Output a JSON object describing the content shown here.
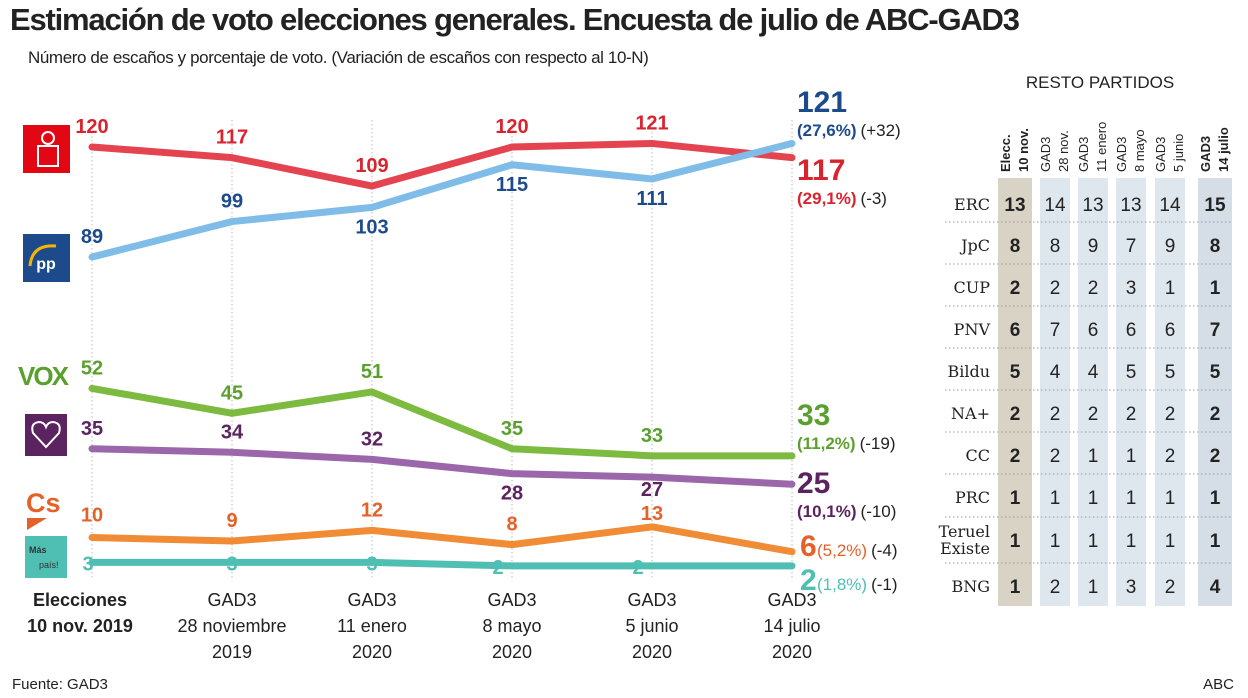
{
  "header": {
    "title": "Estimación de voto elecciones generales. Encuesta de julio de ABC-GAD3",
    "subtitle": "Número de escaños y porcentaje de voto. (Variación de escaños con respecto al 10-N)"
  },
  "footer": {
    "source": "Fuente: GAD3",
    "brand": "ABC"
  },
  "chart_data": {
    "type": "line",
    "categories": [
      [
        "Elecciones",
        "10 nov. 2019"
      ],
      [
        "GAD3",
        "28 noviembre",
        "2019"
      ],
      [
        "GAD3",
        "11 enero",
        "2020"
      ],
      [
        "GAD3",
        "8 mayo",
        "2020"
      ],
      [
        "GAD3",
        "5 junio",
        "2020"
      ],
      [
        "GAD3",
        "14 julio",
        "2020"
      ]
    ],
    "grid": "vertical dotted",
    "series": [
      {
        "party": "PSOE",
        "logo": "psoe-rose-fist-logo",
        "color": "#e3444f",
        "label_color": "#d9232e",
        "values": [
          120,
          117,
          109,
          120,
          121,
          117
        ],
        "final": {
          "seats": "117",
          "pct": "(29,1%)",
          "change": "(-3)"
        }
      },
      {
        "party": "PP",
        "logo": "pp-gull-logo",
        "color": "#7fbde8",
        "label_color": "#1c4a8a",
        "values": [
          89,
          99,
          103,
          115,
          111,
          121
        ],
        "final": {
          "seats": "121",
          "pct": "(27,6%)",
          "change": "(+32)"
        }
      },
      {
        "party": "Vox",
        "logo": "vox-logo",
        "logo_text": "VOX",
        "color": "#7cbb3f",
        "label_color": "#5aa02e",
        "values": [
          52,
          45,
          51,
          35,
          33,
          33
        ],
        "final": {
          "seats": "33",
          "pct": "(11,2%)",
          "change": "(-19)"
        }
      },
      {
        "party": "Unidas Podemos",
        "logo": "heart-logo",
        "color": "#9b67aa",
        "label_color": "#5b2360",
        "values": [
          35,
          34,
          32,
          28,
          27,
          25
        ],
        "final": {
          "seats": "25",
          "pct": "(10,1%)",
          "change": "(-10)"
        }
      },
      {
        "party": "Cs",
        "logo": "cs-logo",
        "logo_text": "Cs",
        "color": "#f08c35",
        "label_color": "#e4622a",
        "values": [
          10,
          9,
          12,
          8,
          13,
          6
        ],
        "final": {
          "seats": "6",
          "pct": "(5,2%)",
          "change": "(-4)"
        }
      },
      {
        "party": "Más País",
        "logo": "mas-pais-logo",
        "logo_text": "Más país!",
        "color": "#4fbfb3",
        "label_color": "#4fbfb3",
        "values": [
          3,
          3,
          3,
          2,
          2,
          2
        ],
        "final": {
          "seats": "2",
          "pct": "(1,8%)",
          "change": "(-1)"
        }
      }
    ]
  },
  "table": {
    "title": "RESTO PARTIDOS",
    "columns": [
      [
        "Elecc.",
        "10 nov."
      ],
      [
        "GAD3",
        "28 nov."
      ],
      [
        "GAD3",
        "11 enero"
      ],
      [
        "GAD3",
        "8 mayo"
      ],
      [
        "GAD3",
        "5 junio"
      ],
      [
        "GAD3",
        "14 julio"
      ]
    ],
    "rows": [
      {
        "party": [
          "ERC"
        ],
        "values": [
          "13",
          "14",
          "13",
          "13",
          "14",
          "15"
        ]
      },
      {
        "party": [
          "JpC"
        ],
        "values": [
          "8",
          "8",
          "9",
          "7",
          "9",
          "8"
        ]
      },
      {
        "party": [
          "CUP"
        ],
        "values": [
          "2",
          "2",
          "2",
          "3",
          "1",
          "1"
        ]
      },
      {
        "party": [
          "PNV"
        ],
        "values": [
          "6",
          "7",
          "6",
          "6",
          "6",
          "7"
        ]
      },
      {
        "party": [
          "Bildu"
        ],
        "values": [
          "5",
          "4",
          "4",
          "5",
          "5",
          "5"
        ]
      },
      {
        "party": [
          "NA+"
        ],
        "values": [
          "2",
          "2",
          "2",
          "2",
          "2",
          "2"
        ]
      },
      {
        "party": [
          "CC"
        ],
        "values": [
          "2",
          "2",
          "1",
          "1",
          "2",
          "2"
        ]
      },
      {
        "party": [
          "PRC"
        ],
        "values": [
          "1",
          "1",
          "1",
          "1",
          "1",
          "1"
        ]
      },
      {
        "party": [
          "Teruel",
          "Existe"
        ],
        "values": [
          "1",
          "1",
          "1",
          "1",
          "1",
          "1"
        ]
      },
      {
        "party": [
          "BNG"
        ],
        "values": [
          "1",
          "2",
          "1",
          "3",
          "2",
          "4"
        ]
      }
    ],
    "colors": {
      "first_col": "#d8d3c4",
      "mid_col": "#dfe7ee",
      "last_col": "#d5dde7"
    }
  }
}
